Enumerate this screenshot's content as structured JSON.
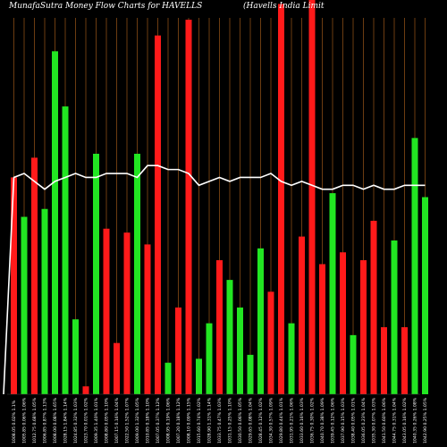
{
  "chart_data": {
    "type": "bar",
    "title_left": "MunafaSutra  Money Flow  Charts for HAVELLS",
    "title_right": "(Havells India  Limit",
    "background": "#000000",
    "grid_color": "#b5651d",
    "line_color": "#ffffff",
    "colors": {
      "up": "#22e622",
      "down": "#ff1a1a"
    },
    "categories": [
      "1008.05 0.02% 1.1%",
      "1005.85 0.06% 1.06%",
      "1012.75 0.68% 1.05%",
      "1006.85 0.87% 1.13%",
      "1008.00 0.08% 1.65%",
      "1028.15 1.84% 1.14%",
      "1024.85 0.32% 1.03%",
      "1023.70 0.01% 1.02%",
      "1009.35 1.40% 1.01%",
      "1008.80 0.05% 1.10%",
      "1007.15 0.16% 1.04%",
      "1022.50 1.52% 1.07%",
      "1009.00 1.32% 1.05%",
      "1010.85 0.18% 1.10%",
      "1007.05 0.37% 1.12%",
      "1008.95 0.19% 1.06%",
      "1007.20 0.18% 1.12%",
      "1008.10 0.09% 1.15%",
      "1015.60 0.74% 1.02%",
      "1028.90 1.31% 1.14%",
      "1033.75 0.47% 1.03%",
      "1031.15 0.25% 1.10%",
      "1030.50 0.06% 1.05%",
      "1029.65 0.08% 1.04%",
      "1028.45 0.12% 1.02%",
      "1034.30 0.57% 1.09%",
      "1029.80 0.44% 1.01%",
      "1031.95 0.21% 1.06%",
      "1033.60 0.16% 1.03%",
      "1036.75 0.30% 1.02%",
      "1040.70 0.38% 1.09%",
      "1039.45 0.12% 1.06%",
      "1037.90 0.15% 1.03%",
      "1038.40 0.05% 1.01%",
      "1036.05 0.23% 1.04%",
      "1035.30 0.07% 1.03%",
      "1041.50 0.60% 1.06%",
      "1044.75 0.31% 1.04%",
      "1043.05 0.16% 1.02%",
      "1040.35 0.26% 1.08%",
      "1042.90 0.25% 1.05%"
    ],
    "values": [
      55,
      45,
      60,
      47,
      87,
      73,
      19,
      2,
      61,
      42,
      13,
      41,
      61,
      38,
      91,
      8,
      22,
      95,
      9,
      18,
      34,
      29,
      22,
      10,
      37,
      26,
      99,
      18,
      40,
      100,
      33,
      51,
      36,
      15,
      34,
      44,
      17,
      39,
      17,
      65,
      50
    ],
    "directions": [
      "down",
      "up",
      "down",
      "up",
      "up",
      "up",
      "up",
      "down",
      "up",
      "down",
      "down",
      "down",
      "up",
      "down",
      "down",
      "up",
      "down",
      "down",
      "up",
      "up",
      "down",
      "up",
      "up",
      "up",
      "up",
      "down",
      "down",
      "up",
      "down",
      "down",
      "down",
      "up",
      "down",
      "up",
      "down",
      "down",
      "down",
      "up",
      "down",
      "up",
      "up"
    ],
    "line": [
      55,
      56,
      54,
      52,
      54,
      55,
      56,
      55,
      55,
      56,
      56,
      56,
      55,
      58,
      58,
      57,
      57,
      56,
      53,
      54,
      55,
      54,
      55,
      55,
      55,
      56,
      54,
      53,
      54,
      53,
      52,
      52,
      53,
      53,
      52,
      53,
      52,
      52,
      53,
      53,
      53
    ],
    "ylim": [
      0,
      100
    ]
  }
}
